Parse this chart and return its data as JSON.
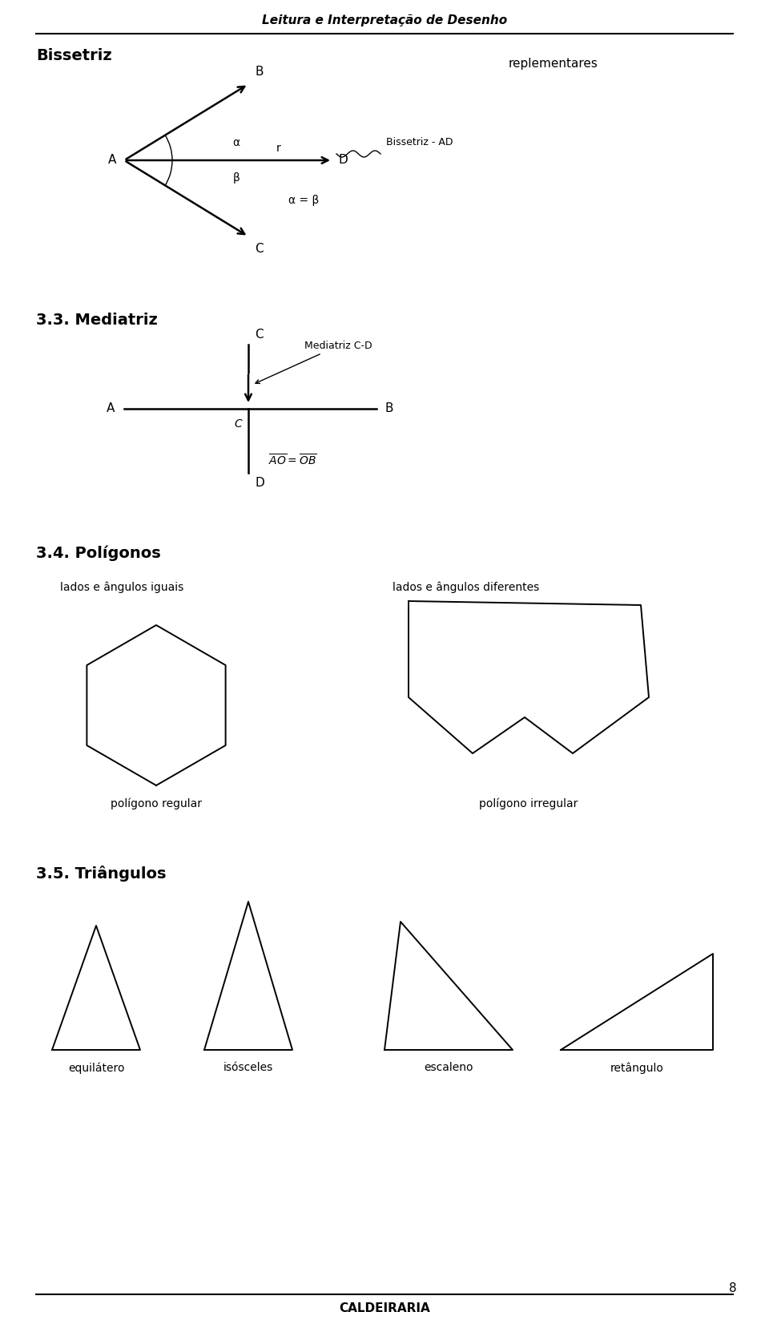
{
  "title": "Leitura e Interpretação de Desenho",
  "footer": "CALDEIRARIA",
  "page_num": "8",
  "bg_color": "#ffffff",
  "line_color": "#000000",
  "sections": {
    "bissetriz": {
      "heading": "Bissetriz",
      "side_note": "replementares",
      "label_A": "A",
      "label_B": "B",
      "label_C": "C",
      "label_D": "D",
      "label_alpha": "α",
      "label_beta": "β",
      "label_r": "r",
      "label_eq": "α = β",
      "label_bissetriz": "Bissetriz - AD"
    },
    "mediatriz": {
      "heading": "3.3. Mediatriz",
      "label_A": "A",
      "label_B": "B",
      "label_C_top": "C",
      "label_C_mid": "C",
      "label_D": "D",
      "label_mediatriz": "Mediatriz C-D",
      "label_eq_latex": "$\\overline{AO} = \\overline{OB}$"
    },
    "poligonos": {
      "heading": "3.4. Polígonos",
      "label_regular": "polígono regular",
      "label_irregular": "polígono irregular",
      "label_iguais": "lados e ângulos iguais",
      "label_diferentes": "lados e ângulos diferentes"
    },
    "triangulos": {
      "heading": "3.5. Triângulos",
      "label_equi": "equilátero",
      "label_iso": "isósceles",
      "label_esc": "escaleno",
      "label_ret": "retângulo"
    }
  }
}
